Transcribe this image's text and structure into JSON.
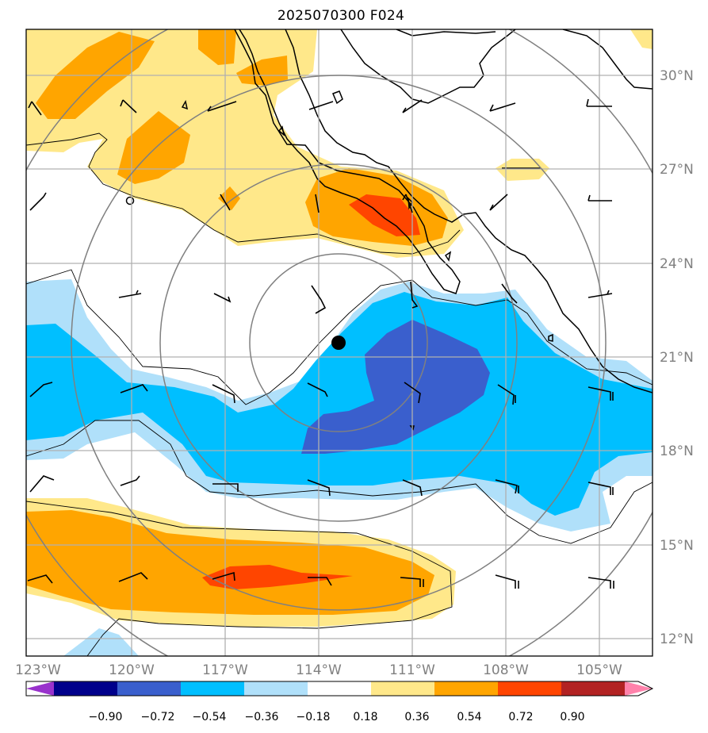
{
  "title": "2025070300 F024",
  "map": {
    "lat_labels": [
      "30°N",
      "27°N",
      "24°N",
      "21°N",
      "18°N",
      "15°N",
      "12°N"
    ],
    "lon_labels": [
      "123°W",
      "120°W",
      "117°W",
      "114°W",
      "111°W",
      "108°W",
      "105°W"
    ],
    "storm_center": {
      "lon": -113.4,
      "lat": 21.5
    }
  },
  "colorbar": {
    "ticks": [
      "−0.90",
      "−0.72",
      "−0.54",
      "−0.36",
      "−0.18",
      "0.18",
      "0.36",
      "0.54",
      "0.72",
      "0.90"
    ],
    "colors": [
      "#9932cc",
      "#00008b",
      "#3a5fcd",
      "#00bfff",
      "#b0e0fa",
      "#ffffff",
      "#ffe88a",
      "#ffa500",
      "#ff4500",
      "#b22222",
      "#ff82ab"
    ],
    "extend": "both"
  }
}
